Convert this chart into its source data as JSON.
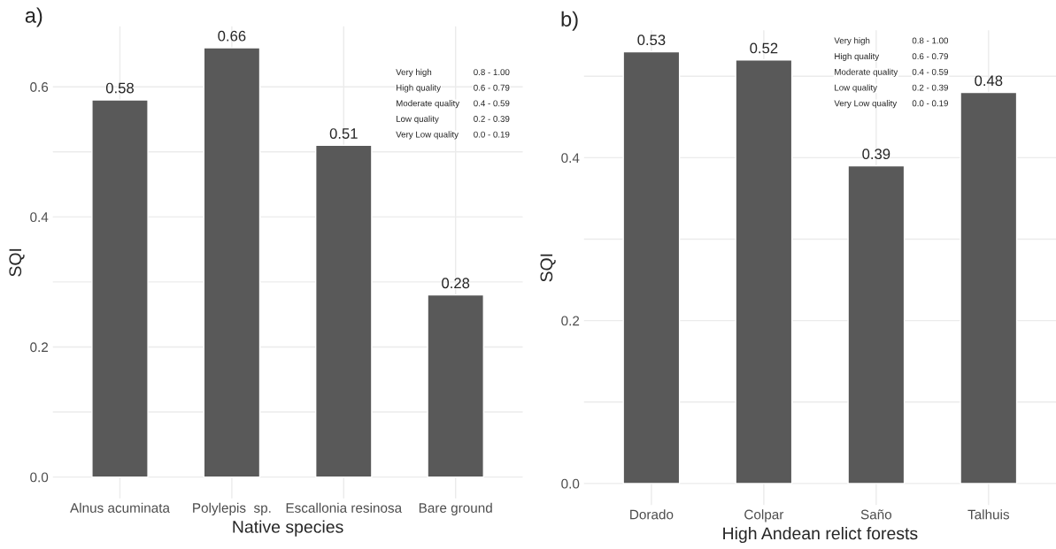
{
  "chart_data": [
    {
      "type": "bar",
      "title": "a)",
      "xlabel": "Native species",
      "ylabel": "SQI",
      "categories": [
        "Alnus acuminata",
        "Polylepis  sp.",
        "Escallonia resinosa",
        "Bare ground"
      ],
      "values": [
        0.58,
        0.66,
        0.51,
        0.28
      ],
      "color": "#595959",
      "data_labels": true,
      "ylim": [
        -0.033,
        0.693
      ],
      "yticks": [
        {
          "value": 0,
          "label": "0.0"
        },
        {
          "value": 0.1,
          "label": null
        },
        0.2,
        {
          "value": 0.3,
          "label": null
        },
        0.4,
        {
          "value": 0.5,
          "label": null
        },
        0.6
      ],
      "grid": true,
      "annotations": [
        "Very high",
        "0.8 - 1.00",
        "High quality",
        "0.6 - 0.79",
        "Moderate quality",
        "0.4 - 0.59",
        "Low quality",
        "0.2 - 0.39",
        "Very Low quality",
        "0.0 - 0.19"
      ]
    },
    {
      "type": "bar",
      "title": "b)",
      "xlabel": "High Andean relict forests",
      "ylabel": "SQI",
      "categories": [
        "Dorado",
        "Colpar",
        "Saño",
        "Talhuis"
      ],
      "values": [
        0.53,
        0.52,
        0.39,
        0.48
      ],
      "color": "#595959",
      "data_labels": true,
      "ylim": [
        -0.0265,
        0.5565
      ],
      "yticks": [
        {
          "value": 0,
          "label": "0.0"
        },
        {
          "value": 0.1,
          "label": null
        },
        0.2,
        {
          "value": 0.3,
          "label": null
        },
        0.4,
        {
          "value": 0.5,
          "label": null
        }
      ],
      "grid": true,
      "annotations": [
        "Very high",
        "0.8 - 1.00",
        "High quality",
        "0.6 - 0.79",
        "Moderate quality",
        "0.4 - 0.59",
        "Low quality",
        "0.2 - 0.39",
        "Very Low quality",
        "0.0 - 0.19"
      ]
    }
  ]
}
